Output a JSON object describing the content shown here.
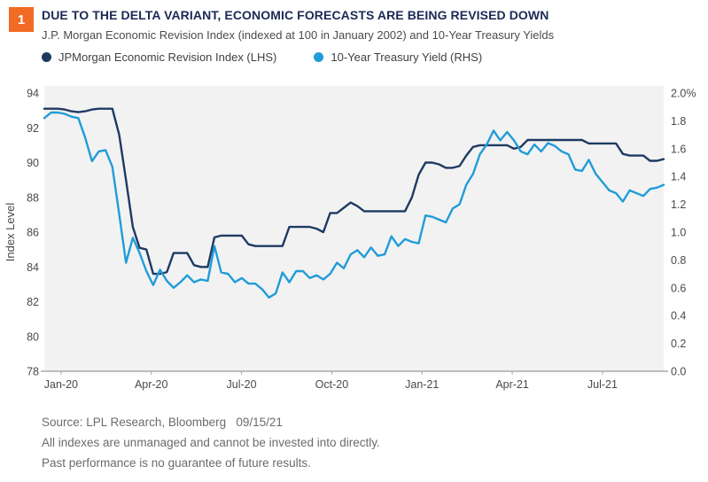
{
  "header": {
    "figure_number": "1",
    "title": "DUE TO THE DELTA VARIANT, ECONOMIC FORECASTS ARE BEING REVISED DOWN",
    "subtitle": "J.P. Morgan Economic Revision Index (indexed at 100 in January 2002) and 10-Year Treasury Yields"
  },
  "legend": {
    "items": [
      {
        "label": "JPMorgan Economic Revision Index (LHS)",
        "color": "#1e3a63"
      },
      {
        "label": "10-Year Treasury Yield (RHS)",
        "color": "#209cd8"
      }
    ]
  },
  "chart_data": {
    "type": "line",
    "title": "DUE TO THE DELTA VARIANT, ECONOMIC FORECASTS ARE BEING REVISED DOWN",
    "x_tick_labels": [
      "Jan-20",
      "Apr-20",
      "Jul-20",
      "Oct-20",
      "Jan-21",
      "Apr-21",
      "Jul-21"
    ],
    "x_range_note": "weekly data, mid-Dec 2019 through mid-Sep 2021",
    "grid": false,
    "legend_position": "top",
    "plot_bg": "#f2f2f3",
    "axis_line_color": "#999999",
    "tick_text_color": "#4a4a4a",
    "left_axis": {
      "label": "Index Level",
      "min": 78,
      "max": 94,
      "ticks": [
        "94",
        "92",
        "90",
        "88",
        "86",
        "84",
        "82",
        "80",
        "78"
      ]
    },
    "right_axis": {
      "label": "",
      "min": 0.0,
      "max": 2.0,
      "ticks": [
        "2.0%",
        "1.8",
        "1.6",
        "1.4",
        "1.2",
        "1.0",
        "0.8",
        "0.6",
        "0.4",
        "0.2",
        "0.0"
      ]
    },
    "series": [
      {
        "name": "JPMorgan Economic Revision Index (LHS)",
        "axis": "left",
        "color": "#1e3a63",
        "values": [
          93.1,
          93.1,
          93.1,
          93.05,
          92.95,
          92.9,
          92.95,
          93.05,
          93.1,
          93.1,
          93.1,
          91.6,
          89.0,
          86.3,
          85.1,
          85.0,
          83.6,
          83.6,
          83.7,
          84.8,
          84.8,
          84.8,
          84.1,
          84.0,
          84.0,
          85.7,
          85.8,
          85.8,
          85.8,
          85.8,
          85.3,
          85.2,
          85.2,
          85.2,
          85.2,
          85.2,
          86.3,
          86.3,
          86.3,
          86.3,
          86.2,
          86.0,
          87.1,
          87.1,
          87.4,
          87.7,
          87.5,
          87.2,
          87.2,
          87.2,
          87.2,
          87.2,
          87.2,
          87.2,
          88.0,
          89.3,
          90.0,
          90.0,
          89.9,
          89.7,
          89.7,
          89.8,
          90.4,
          90.9,
          91.0,
          91.0,
          91.0,
          91.0,
          91.0,
          90.8,
          90.9,
          91.3,
          91.3,
          91.3,
          91.3,
          91.3,
          91.3,
          91.3,
          91.3,
          91.3,
          91.1,
          91.1,
          91.1,
          91.1,
          91.1,
          90.5,
          90.4,
          90.4,
          90.4,
          90.1,
          90.1,
          90.2
        ]
      },
      {
        "name": "10-Year Treasury Yield (RHS)",
        "axis": "right",
        "color": "#209cd8",
        "values": [
          1.82,
          1.86,
          1.86,
          1.85,
          1.83,
          1.82,
          1.68,
          1.51,
          1.58,
          1.59,
          1.47,
          1.13,
          0.78,
          0.96,
          0.85,
          0.72,
          0.62,
          0.73,
          0.65,
          0.6,
          0.64,
          0.69,
          0.64,
          0.66,
          0.65,
          0.9,
          0.71,
          0.7,
          0.64,
          0.67,
          0.63,
          0.63,
          0.59,
          0.53,
          0.56,
          0.71,
          0.64,
          0.72,
          0.72,
          0.67,
          0.69,
          0.66,
          0.7,
          0.78,
          0.74,
          0.84,
          0.87,
          0.82,
          0.89,
          0.83,
          0.84,
          0.97,
          0.9,
          0.95,
          0.93,
          0.92,
          1.12,
          1.11,
          1.09,
          1.07,
          1.17,
          1.2,
          1.34,
          1.42,
          1.56,
          1.63,
          1.73,
          1.66,
          1.72,
          1.66,
          1.58,
          1.56,
          1.63,
          1.58,
          1.64,
          1.62,
          1.58,
          1.56,
          1.45,
          1.44,
          1.52,
          1.42,
          1.36,
          1.3,
          1.28,
          1.22,
          1.3,
          1.28,
          1.26,
          1.31,
          1.32,
          1.34
        ]
      }
    ]
  },
  "footer": {
    "source_line": "Source: LPL Research, Bloomberg   09/15/21",
    "disclaimer_line1": "All indexes are unmanaged and cannot be invested into directly.",
    "disclaimer_line2": "Past performance is no guarantee of future results."
  },
  "colors": {
    "accent_orange": "#f26b24",
    "title_navy": "#1b2a55"
  }
}
